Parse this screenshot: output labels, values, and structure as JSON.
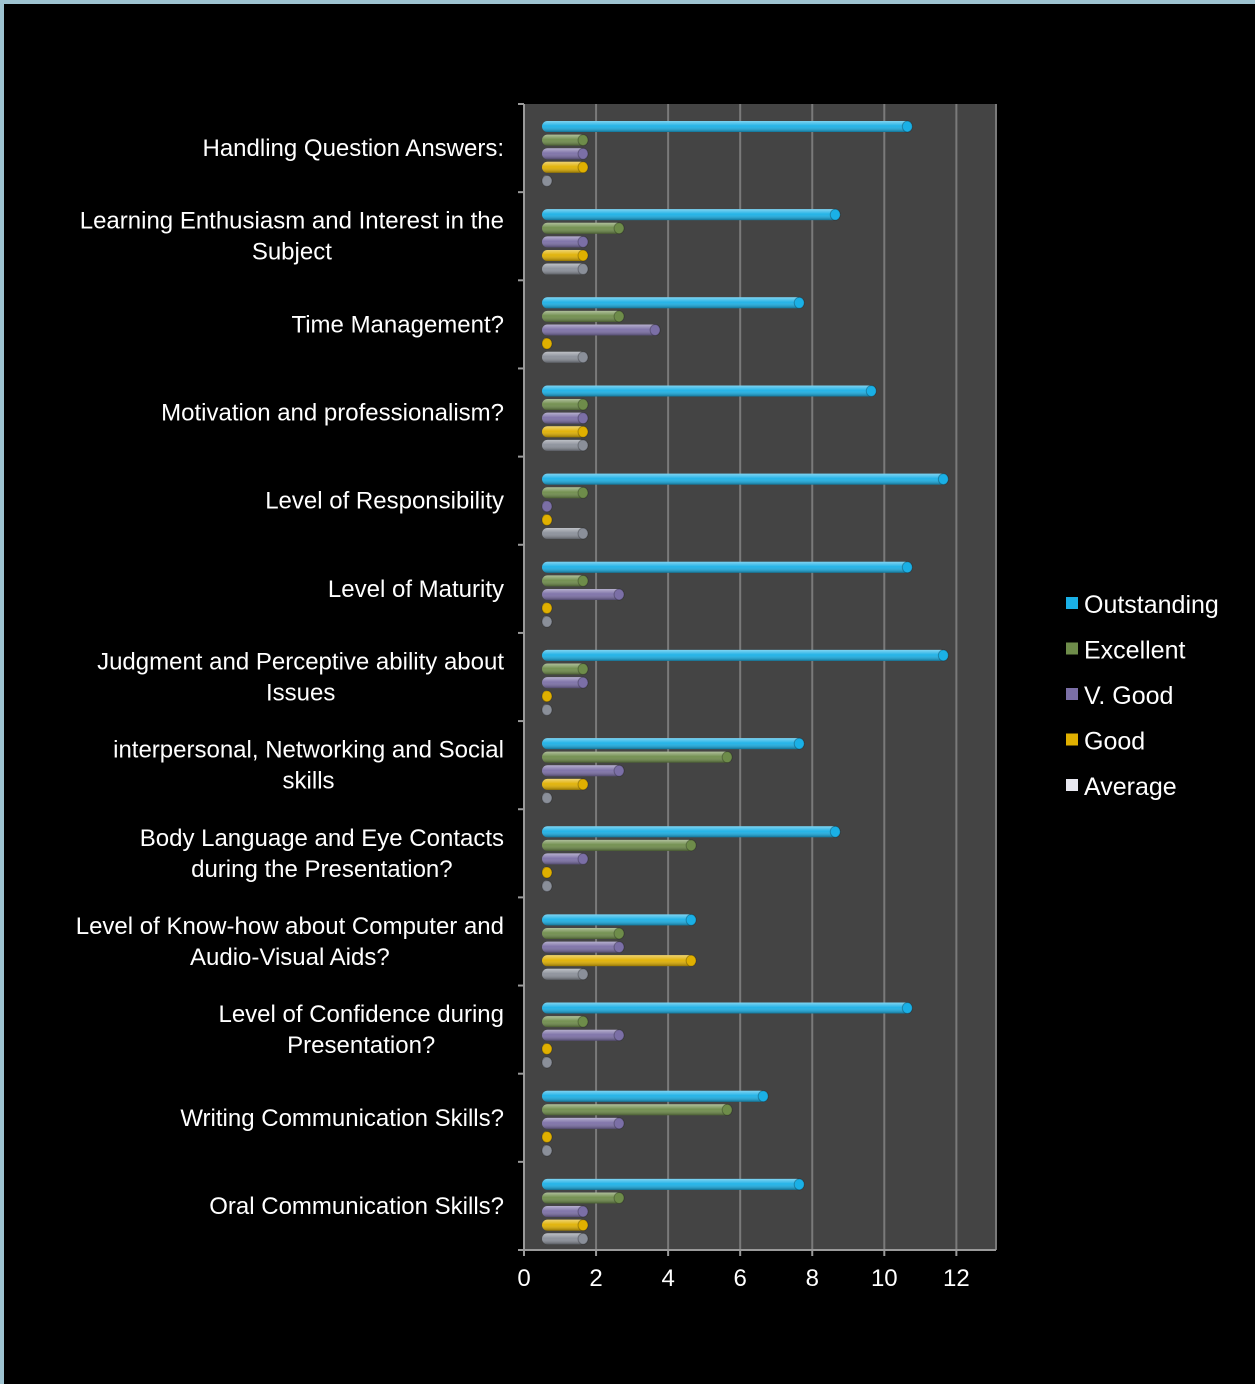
{
  "chart_data": {
    "type": "bar",
    "orientation": "horizontal",
    "categories": [
      "Handling Question Answers:",
      "Learning Enthusiasm and Interest in the Subject",
      "Time Management?",
      "Motivation and professionalism?",
      "Level of Responsibility",
      "Level of Maturity",
      "Judgment and Perceptive ability about Issues",
      "interpersonal, Networking and Social skills",
      "Body Language and Eye Contacts during the Presentation?",
      "Level of Know-how about Computer and Audio-Visual Aids?",
      "Level of Confidence during Presentation?",
      "Writing Communication Skills?",
      "Oral Communication Skills?"
    ],
    "category_lines": [
      [
        "Handling Question Answers:"
      ],
      [
        "Learning Enthusiasm and Interest in the",
        "Subject"
      ],
      [
        "Time Management?"
      ],
      [
        "Motivation and professionalism?"
      ],
      [
        "Level of Responsibility"
      ],
      [
        "Level of Maturity"
      ],
      [
        "Judgment and Perceptive ability about",
        "Issues"
      ],
      [
        "interpersonal, Networking and Social",
        "skills"
      ],
      [
        "Body Language and Eye Contacts",
        "during the Presentation?"
      ],
      [
        "Level of Know-how about Computer and",
        "Audio-Visual Aids?"
      ],
      [
        "Level of Confidence during",
        "Presentation?"
      ],
      [
        "Writing Communication Skills?"
      ],
      [
        "Oral Communication Skills?"
      ]
    ],
    "series": [
      {
        "name": "Outstanding",
        "color": "#1ab0e6",
        "values": [
          10,
          8,
          7,
          9,
          11,
          10,
          11,
          7,
          8,
          4,
          10,
          6,
          7
        ]
      },
      {
        "name": "Excellent",
        "color": "#6e8c4a",
        "values": [
          1,
          2,
          2,
          1,
          1,
          1,
          1,
          5,
          4,
          2,
          1,
          5,
          2
        ]
      },
      {
        "name": "V. Good",
        "color": "#7b6fa6",
        "values": [
          1,
          1,
          3,
          1,
          0,
          2,
          1,
          2,
          1,
          2,
          2,
          2,
          1
        ]
      },
      {
        "name": "Good",
        "color": "#e0b000",
        "values": [
          1,
          1,
          0,
          1,
          0,
          0,
          0,
          1,
          0,
          4,
          0,
          0,
          1
        ]
      },
      {
        "name": "Average",
        "color": "#8a8f99",
        "values": [
          0,
          1,
          1,
          1,
          1,
          0,
          0,
          0,
          0,
          1,
          0,
          0,
          1
        ]
      }
    ],
    "xlim": [
      0,
      12
    ],
    "x_ticks": [
      "0",
      "2",
      "4",
      "6",
      "8",
      "10",
      "12"
    ],
    "grid": true,
    "legend_position": "right",
    "title": "",
    "xlabel": "",
    "ylabel": ""
  }
}
